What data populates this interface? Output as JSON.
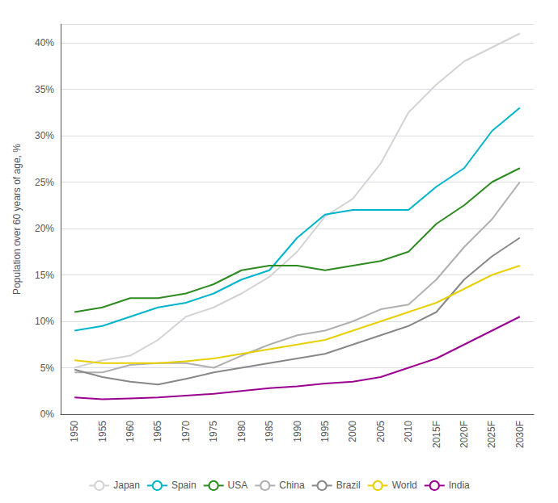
{
  "chart_data": {
    "type": "line",
    "categories": [
      "1950",
      "1955",
      "1960",
      "1965",
      "1970",
      "1975",
      "1980",
      "1985",
      "1990",
      "1995",
      "2000",
      "2005",
      "2010",
      "2015F",
      "2020F",
      "2025F",
      "2030F"
    ],
    "series": [
      {
        "name": "Japan",
        "color": "#d3d3d3",
        "values": [
          5.0,
          5.8,
          6.3,
          8.0,
          10.5,
          11.5,
          13.0,
          14.8,
          17.5,
          21.3,
          23.2,
          27.0,
          32.5,
          35.5,
          38.0,
          39.5,
          41.0
        ]
      },
      {
        "name": "Spain",
        "color": "#00b4cc",
        "values": [
          9.0,
          9.5,
          10.5,
          11.5,
          12.0,
          13.0,
          14.5,
          15.5,
          19.0,
          21.5,
          22.0,
          22.0,
          22.0,
          24.5,
          26.5,
          30.5,
          33.0
        ]
      },
      {
        "name": "USA",
        "color": "#2e8b22",
        "values": [
          11.0,
          11.5,
          12.5,
          12.5,
          13.0,
          14.0,
          15.5,
          16.0,
          16.0,
          15.5,
          16.0,
          16.5,
          17.5,
          20.5,
          22.5,
          25.0,
          26.5
        ]
      },
      {
        "name": "China",
        "color": "#b0b0b0",
        "values": [
          4.5,
          4.5,
          5.3,
          5.5,
          5.5,
          5.0,
          6.3,
          7.5,
          8.5,
          9.0,
          10.0,
          11.3,
          11.8,
          14.5,
          18.0,
          21.0,
          25.0
        ]
      },
      {
        "name": "Brazil",
        "color": "#888888",
        "values": [
          4.8,
          4.0,
          3.5,
          3.2,
          3.8,
          4.5,
          5.0,
          5.5,
          6.0,
          6.5,
          7.5,
          8.5,
          9.5,
          11.0,
          14.5,
          17.0,
          19.0
        ]
      },
      {
        "name": "World",
        "color": "#e8d000",
        "values": [
          5.8,
          5.5,
          5.5,
          5.5,
          5.7,
          6.0,
          6.5,
          7.0,
          7.5,
          8.0,
          9.0,
          10.0,
          11.0,
          12.0,
          13.5,
          15.0,
          16.0
        ]
      },
      {
        "name": "India",
        "color": "#9b0090",
        "values": [
          1.8,
          1.6,
          1.7,
          1.8,
          2.0,
          2.2,
          2.5,
          2.8,
          3.0,
          3.3,
          3.5,
          4.0,
          5.0,
          6.0,
          7.5,
          9.0,
          10.5
        ]
      }
    ],
    "ylabel": "Population over 60 years of age, %",
    "ylim": [
      0,
      42
    ],
    "yticks": [
      {
        "value": 0,
        "label": "0%"
      },
      {
        "value": 5,
        "label": "5%"
      },
      {
        "value": 10,
        "label": "10%"
      },
      {
        "value": 15,
        "label": "15%"
      },
      {
        "value": 20,
        "label": "20%"
      },
      {
        "value": 25,
        "label": "25%"
      },
      {
        "value": 30,
        "label": "30%"
      },
      {
        "value": 35,
        "label": "35%"
      },
      {
        "value": 40,
        "label": "40%"
      }
    ],
    "grid": true,
    "legend": "bottom"
  }
}
